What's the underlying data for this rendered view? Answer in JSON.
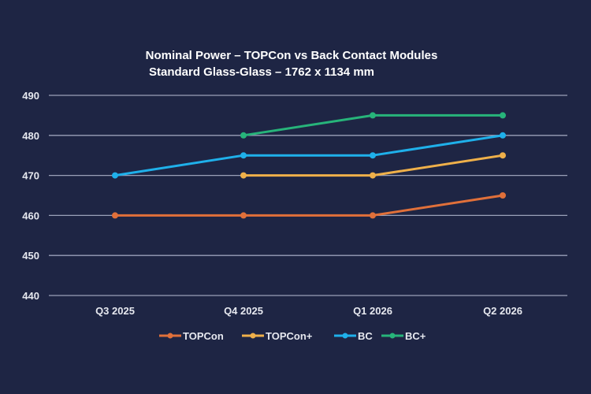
{
  "chart_data": {
    "type": "line",
    "title": "Nominal Power – TOPCon vs Back Contact Modules",
    "subtitle": "Standard Glass-Glass – 1762 x 1134 mm",
    "xlabel": "",
    "ylabel": "",
    "categories": [
      "Q3 2025",
      "Q4 2025",
      "Q1 2026",
      "Q2 2026"
    ],
    "ylim": [
      440,
      490
    ],
    "yticks": [
      440,
      450,
      460,
      470,
      480,
      490
    ],
    "grid": true,
    "legend_position": "bottom",
    "series": [
      {
        "name": "TOPCon",
        "color": "#e0703a",
        "values": [
          460,
          460,
          460,
          465
        ]
      },
      {
        "name": "TOPCon+",
        "color": "#efb04a",
        "values": [
          null,
          470,
          470,
          475
        ]
      },
      {
        "name": "BC",
        "color": "#1fb0ea",
        "values": [
          470,
          475,
          475,
          480
        ]
      },
      {
        "name": "BC+",
        "color": "#27b47a",
        "values": [
          null,
          480,
          485,
          485
        ]
      }
    ]
  }
}
